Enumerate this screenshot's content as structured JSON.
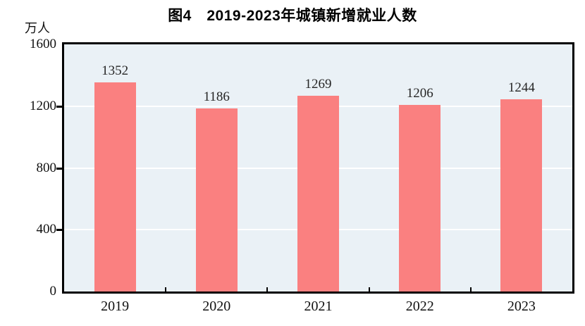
{
  "figure": {
    "title": "图4　2019-2023年城镇新增就业人数",
    "unit_label": "万人"
  },
  "colors": {
    "bar_fill": "#FA8080",
    "plot_background": "#EAF1F6",
    "gridline": "#FFFFFF",
    "axis": "#000000",
    "title_text": "#000000",
    "label_text": "#262626"
  },
  "chart_data": {
    "type": "bar",
    "title": "图4　2019-2023年城镇新增就业人数",
    "categories": [
      "2019",
      "2020",
      "2021",
      "2022",
      "2023"
    ],
    "values": [
      1352,
      1186,
      1269,
      1206,
      1244
    ],
    "xlabel": "",
    "ylabel": "万人",
    "ylim": [
      0,
      1600
    ],
    "yticks": [
      0,
      400,
      800,
      1200,
      1600
    ],
    "grid": true,
    "gridline_color": "#FFFFFF",
    "legend": false,
    "data_labels": true,
    "bar_color": "#FA8080",
    "plot_background": "#EAF1F6"
  }
}
